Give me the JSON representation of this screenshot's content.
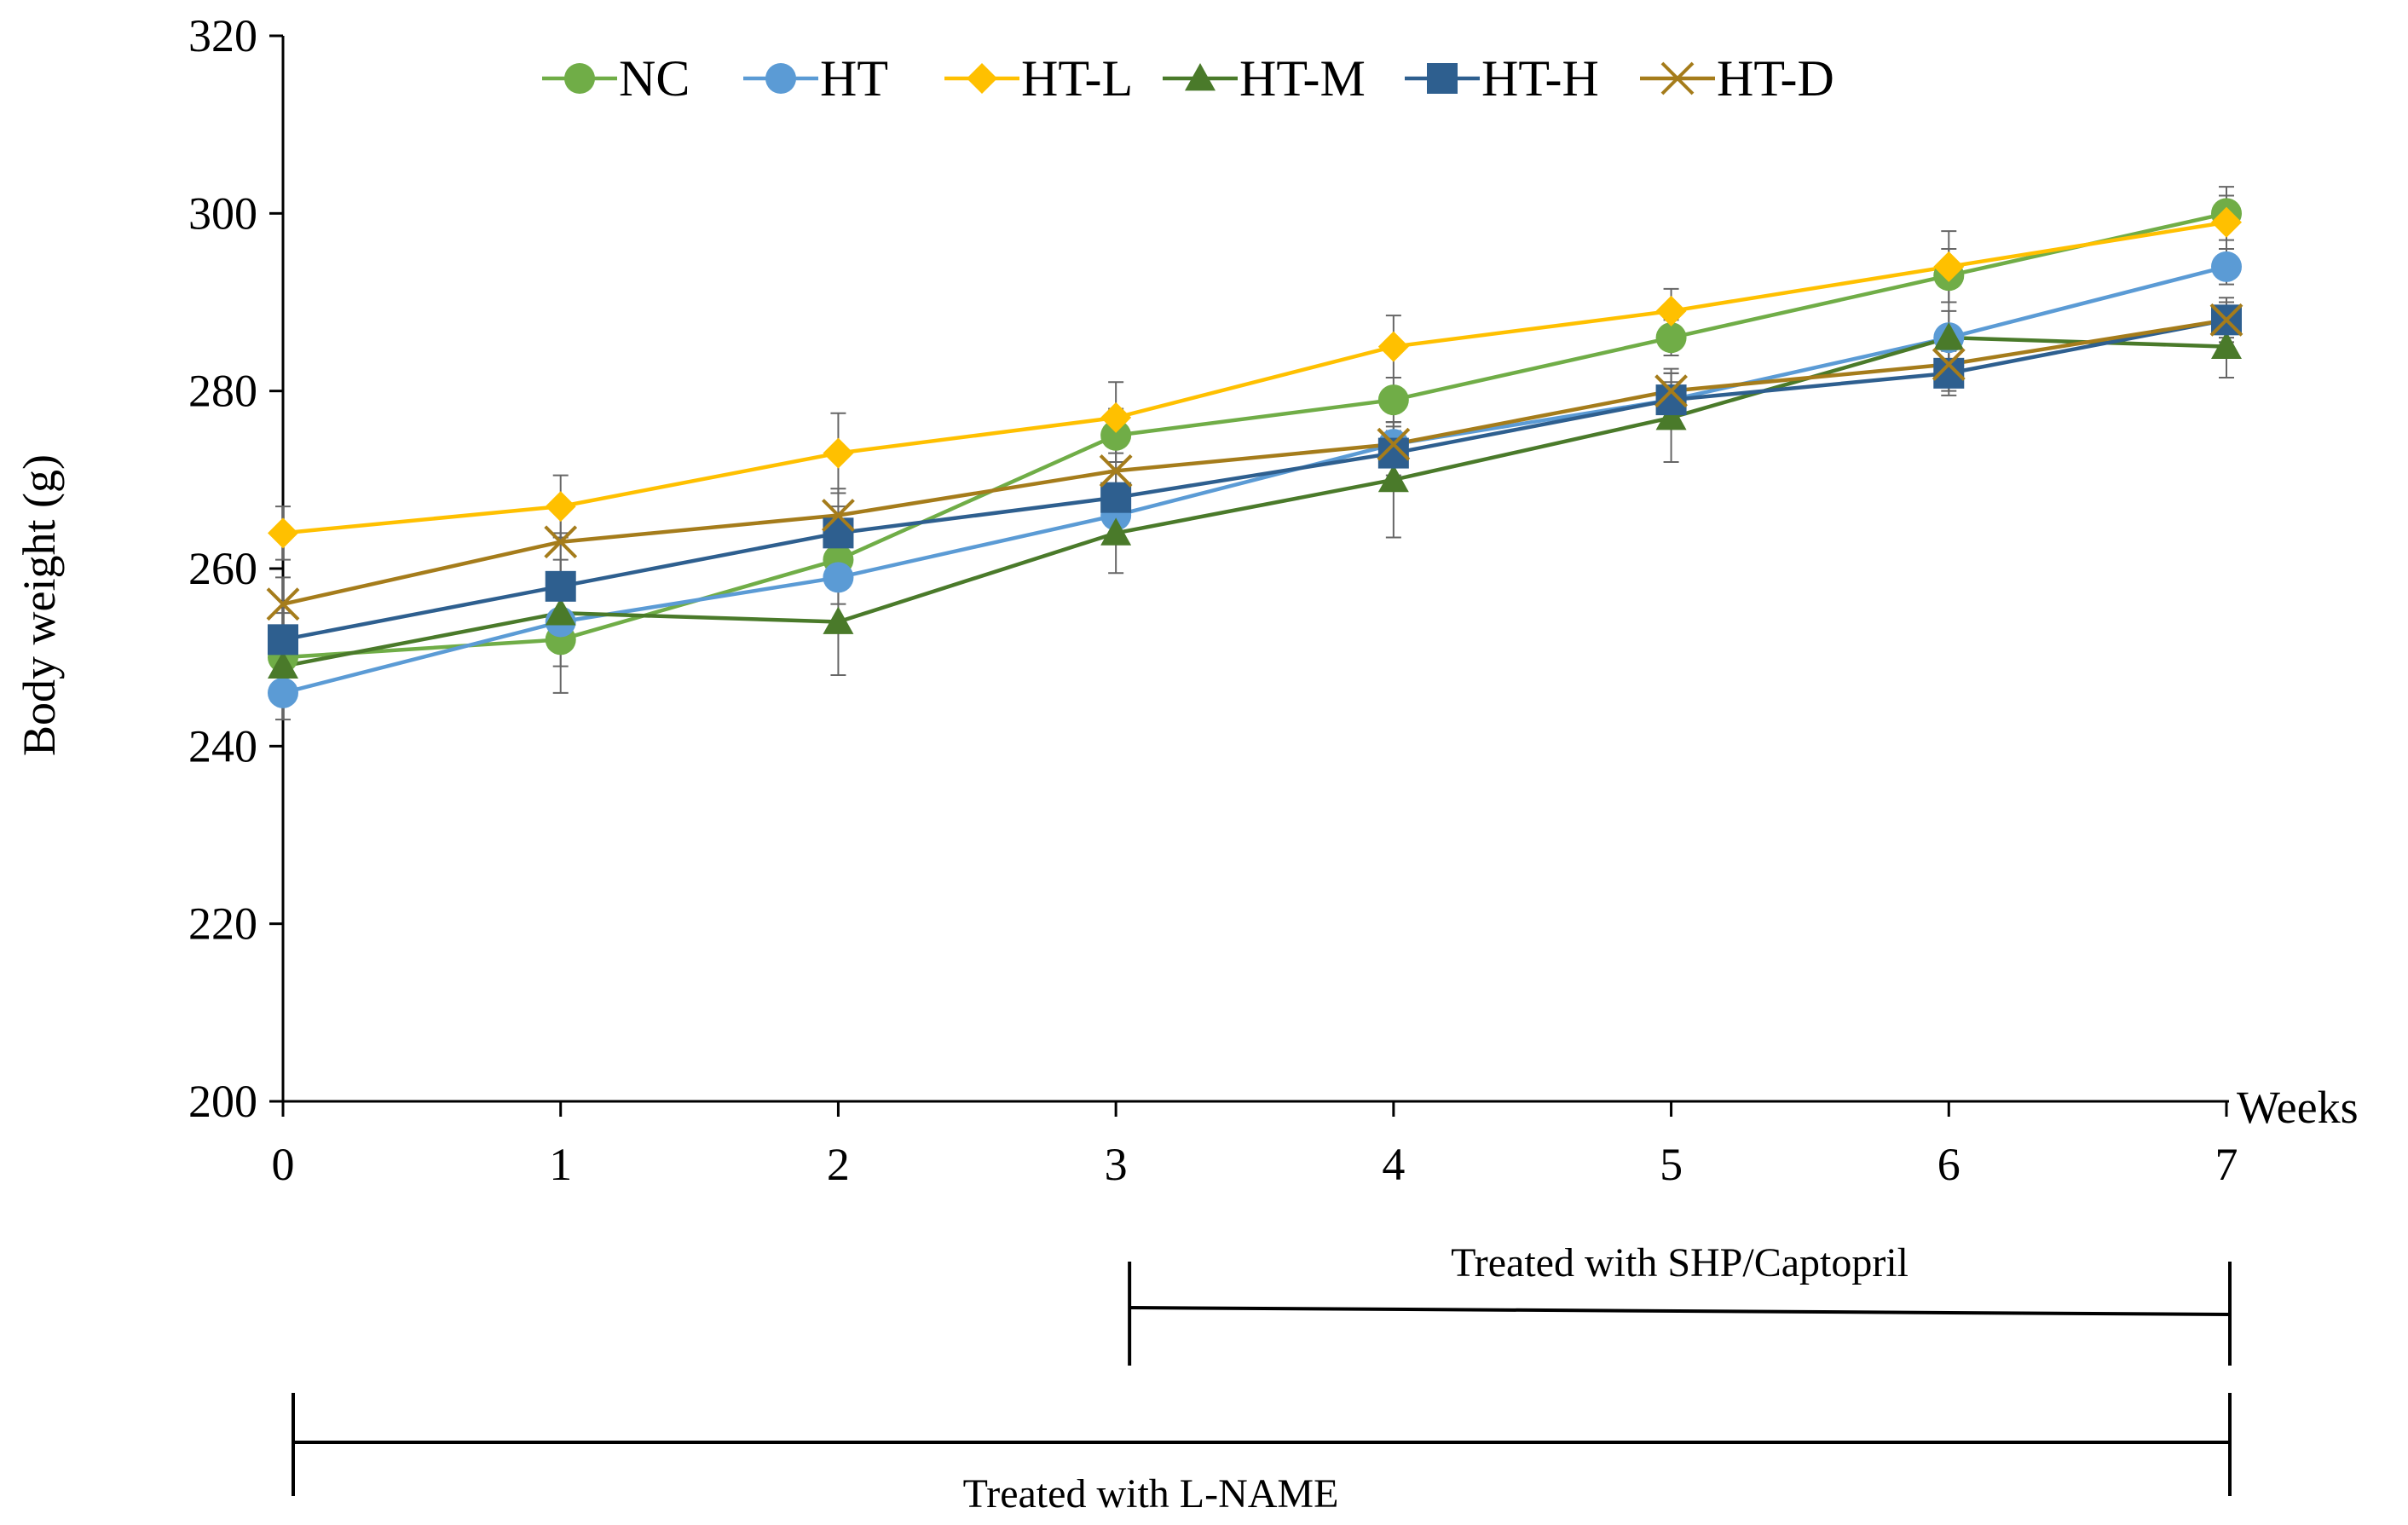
{
  "chart_data": {
    "type": "line",
    "ylabel": "Body weight (g)",
    "xlabel": "Weeks",
    "x": [
      0,
      1,
      2,
      3,
      4,
      5,
      6,
      7
    ],
    "x_tick_labels": [
      "0",
      "1",
      "2",
      "3",
      "4",
      "5",
      "6",
      "7"
    ],
    "ylim": [
      200,
      320
    ],
    "y_ticks": [
      200,
      220,
      240,
      260,
      280,
      300,
      320
    ],
    "y_tick_labels": [
      "200",
      "220",
      "240",
      "260",
      "280",
      "300",
      "320"
    ],
    "legend_position": "top",
    "series": [
      {
        "name": "NC",
        "color": "#70AD47",
        "marker": "circle",
        "values": [
          250,
          252,
          261,
          275,
          279,
          286,
          293,
          300
        ],
        "errors": [
          3,
          3,
          3,
          3,
          2.5,
          2,
          3,
          3
        ]
      },
      {
        "name": "HT",
        "color": "#5B9BD5",
        "marker": "circle",
        "values": [
          246,
          254,
          259,
          266,
          274,
          279,
          286,
          294
        ],
        "errors": [
          3,
          3,
          3,
          3,
          2,
          2,
          3,
          2
        ]
      },
      {
        "name": "HT-L",
        "color": "#FFC000",
        "marker": "diamond",
        "values": [
          264,
          267,
          273,
          277,
          285,
          289,
          294,
          299
        ],
        "errors": [
          3,
          3.5,
          4.5,
          4,
          3.5,
          2.5,
          4,
          3
        ]
      },
      {
        "name": "HT-M",
        "color": "#4A7A2A",
        "marker": "triangle",
        "values": [
          249,
          255,
          254,
          264,
          270,
          277,
          286,
          285
        ],
        "errors": [
          3,
          9,
          6,
          4.5,
          6.5,
          5,
          4,
          3.5
        ]
      },
      {
        "name": "HT-H",
        "color": "#2E5F8F",
        "marker": "square",
        "values": [
          252,
          258,
          264,
          268,
          273,
          279,
          282,
          288
        ],
        "errors": [
          3,
          3,
          3,
          3,
          2.5,
          3,
          2.5,
          2
        ]
      },
      {
        "name": "HT-D",
        "color": "#A57C1B",
        "marker": "x",
        "values": [
          256,
          263,
          266,
          271,
          274,
          280,
          283,
          288
        ],
        "errors": [
          3,
          4,
          3,
          3,
          2.5,
          2.5,
          3,
          2.5
        ]
      }
    ],
    "annotations": [
      {
        "label": "Treated with SHP/Captopril",
        "from_week": 3,
        "to_week": 7
      },
      {
        "label": "Treated with L-NAME",
        "from_week": 0,
        "to_week": 7
      }
    ]
  }
}
